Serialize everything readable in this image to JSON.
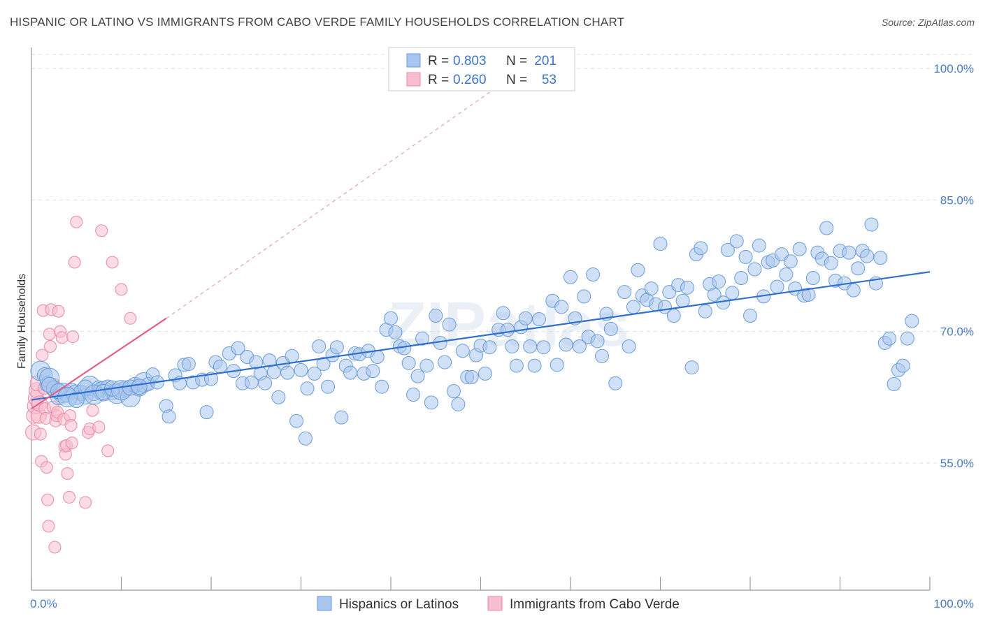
{
  "title": "HISPANIC OR LATINO VS IMMIGRANTS FROM CABO VERDE FAMILY HOUSEHOLDS CORRELATION CHART",
  "source": "Source: ZipAtlas.com",
  "watermark": "ZIPatlas",
  "colors": {
    "blue_fill": "#aac6ee",
    "blue_stroke": "#6a9bd8",
    "blue_line": "#2f6fd0",
    "pink_fill": "#f7bdd0",
    "pink_stroke": "#e88aa8",
    "pink_line": "#e0608c",
    "axis_text": "#4a7cc9",
    "grid": "#dddddd"
  },
  "legend_top": [
    {
      "r_label": "R =",
      "r_value": "0.803",
      "n_label": "N =",
      "n_value": "201"
    },
    {
      "r_label": "R =",
      "r_value": "0.260",
      "n_label": "N =",
      "n_value": "53"
    }
  ],
  "legend_bottom": [
    "Hispanics or Latinos",
    "Immigrants from Cabo Verde"
  ],
  "chart_data": {
    "type": "scatter",
    "xlabel": "",
    "ylabel": "Family Households",
    "xlim": [
      0,
      100
    ],
    "ylim": [
      40,
      103
    ],
    "x_tick_labels": [
      "0.0%",
      "100.0%"
    ],
    "y_ticks": [
      55,
      70,
      85,
      100
    ],
    "y_tick_labels": [
      "55.0%",
      "70.0%",
      "85.0%",
      "100.0%"
    ],
    "series": [
      {
        "name": "Hispanics or Latinos",
        "trend": {
          "x0": 0,
          "y0": 62.2,
          "x1": 100,
          "y1": 76.8
        },
        "points": [
          [
            1,
            65.5
          ],
          [
            1.5,
            65
          ],
          [
            1.8,
            64
          ],
          [
            2,
            64.7
          ],
          [
            2.5,
            63.5
          ],
          [
            3,
            62.5
          ],
          [
            3.5,
            63
          ],
          [
            4,
            62.8
          ],
          [
            4.5,
            63.2
          ],
          [
            5,
            62.8
          ],
          [
            5.5,
            63
          ],
          [
            6,
            62.6
          ],
          [
            6.5,
            63.8
          ],
          [
            7,
            63
          ],
          [
            7.5,
            63.5
          ],
          [
            8,
            63.2
          ],
          [
            8.5,
            63.6
          ],
          [
            9,
            63.1
          ],
          [
            9.5,
            62.9
          ],
          [
            10,
            63.3
          ],
          [
            10.5,
            63.5
          ],
          [
            11,
            62.5
          ],
          [
            11.5,
            63.9
          ],
          [
            12,
            63.5
          ],
          [
            12.5,
            64.2
          ],
          [
            13,
            64
          ],
          [
            13.5,
            65.1
          ],
          [
            14,
            64.2
          ],
          [
            15,
            61.5
          ],
          [
            15.3,
            60.3
          ],
          [
            16,
            65
          ],
          [
            16.5,
            64.1
          ],
          [
            17,
            66.2
          ],
          [
            17.5,
            66.3
          ],
          [
            18,
            64.2
          ],
          [
            19,
            64.5
          ],
          [
            19.5,
            60.8
          ],
          [
            20,
            64.6
          ],
          [
            20.5,
            66.5
          ],
          [
            21,
            66
          ],
          [
            22,
            67.5
          ],
          [
            22.5,
            65.5
          ],
          [
            23,
            68.1
          ],
          [
            23.5,
            64.1
          ],
          [
            24,
            67.1
          ],
          [
            24.5,
            64.2
          ],
          [
            25,
            66.5
          ],
          [
            25.5,
            65.2
          ],
          [
            26,
            64.1
          ],
          [
            26.5,
            66.7
          ],
          [
            27,
            65.4
          ],
          [
            27.5,
            62.5
          ],
          [
            28,
            66.4
          ],
          [
            28.5,
            65.3
          ],
          [
            29,
            67.2
          ],
          [
            29.5,
            59.8
          ],
          [
            30,
            65.6
          ],
          [
            30.5,
            57.8
          ],
          [
            30.7,
            63.5
          ],
          [
            31.5,
            65.2
          ],
          [
            32,
            68.3
          ],
          [
            32.5,
            66.3
          ],
          [
            33,
            63.7
          ],
          [
            33.5,
            67.3
          ],
          [
            34,
            68.2
          ],
          [
            34.5,
            60.2
          ],
          [
            35,
            66.1
          ],
          [
            35.5,
            65.3
          ],
          [
            36,
            67.5
          ],
          [
            36.5,
            67.4
          ],
          [
            37,
            65.2
          ],
          [
            37.5,
            67.8
          ],
          [
            38,
            65.5
          ],
          [
            38.5,
            67.1
          ],
          [
            39,
            63.7
          ],
          [
            39.5,
            70.2
          ],
          [
            40,
            71.5
          ],
          [
            40.5,
            69.9
          ],
          [
            41,
            68.3
          ],
          [
            41.5,
            68.1
          ],
          [
            42,
            66.4
          ],
          [
            42.5,
            62.8
          ],
          [
            43,
            64.9
          ],
          [
            43.5,
            69.2
          ],
          [
            44,
            66.1
          ],
          [
            44.5,
            61.9
          ],
          [
            45,
            71.8
          ],
          [
            45.5,
            68.7
          ],
          [
            46,
            66.5
          ],
          [
            46.5,
            70.8
          ],
          [
            47,
            63.2
          ],
          [
            47.5,
            61.7
          ],
          [
            48,
            67.8
          ],
          [
            48.5,
            64.8
          ],
          [
            49,
            64.8
          ],
          [
            49.5,
            67.3
          ],
          [
            50,
            68.4
          ],
          [
            50.5,
            65.2
          ],
          [
            51,
            68.2
          ],
          [
            52,
            70.2
          ],
          [
            52.5,
            72.1
          ],
          [
            53,
            70.2
          ],
          [
            53.5,
            68.3
          ],
          [
            54,
            66.1
          ],
          [
            54.5,
            70.5
          ],
          [
            55,
            71.5
          ],
          [
            55.5,
            68.3
          ],
          [
            56,
            66.1
          ],
          [
            56.5,
            71.4
          ],
          [
            57,
            68.2
          ],
          [
            58,
            73.5
          ],
          [
            58.5,
            66.2
          ],
          [
            59,
            72.8
          ],
          [
            59.5,
            68.5
          ],
          [
            60,
            76.2
          ],
          [
            60.5,
            71.5
          ],
          [
            61,
            68.3
          ],
          [
            61.5,
            74
          ],
          [
            62,
            69.4
          ],
          [
            62.5,
            76.5
          ],
          [
            63,
            68.9
          ],
          [
            63.5,
            67.2
          ],
          [
            64,
            72
          ],
          [
            64.5,
            70.3
          ],
          [
            65,
            64.1
          ],
          [
            66,
            74.5
          ],
          [
            66.5,
            68.3
          ],
          [
            67,
            72.8
          ],
          [
            67.5,
            77
          ],
          [
            68,
            74.1
          ],
          [
            68.5,
            73.6
          ],
          [
            69,
            74.9
          ],
          [
            69.5,
            73.1
          ],
          [
            70,
            80
          ],
          [
            70.5,
            72.8
          ],
          [
            71,
            74.5
          ],
          [
            71.5,
            71.8
          ],
          [
            72,
            75.3
          ],
          [
            72.5,
            73.5
          ],
          [
            73,
            75
          ],
          [
            73.5,
            65.9
          ],
          [
            74,
            78.8
          ],
          [
            74.5,
            79.5
          ],
          [
            75,
            72.3
          ],
          [
            75.5,
            75.4
          ],
          [
            76,
            74.2
          ],
          [
            76.5,
            75.7
          ],
          [
            77,
            73.3
          ],
          [
            77.5,
            79.3
          ],
          [
            78,
            74.4
          ],
          [
            78.5,
            80.3
          ],
          [
            79,
            76.1
          ],
          [
            79.5,
            78.5
          ],
          [
            80,
            71.8
          ],
          [
            80.5,
            77.1
          ],
          [
            81,
            79.8
          ],
          [
            81.5,
            74
          ],
          [
            82,
            77.9
          ],
          [
            82.5,
            78.1
          ],
          [
            83,
            75.1
          ],
          [
            83.5,
            78.8
          ],
          [
            84,
            76.5
          ],
          [
            84.5,
            78
          ],
          [
            85,
            74.9
          ],
          [
            85.5,
            79.4
          ],
          [
            86,
            74.1
          ],
          [
            86.5,
            74.2
          ],
          [
            87,
            76.1
          ],
          [
            87.5,
            79
          ],
          [
            88,
            78.3
          ],
          [
            88.5,
            81.8
          ],
          [
            89,
            77.8
          ],
          [
            89.5,
            75.8
          ],
          [
            90,
            79.2
          ],
          [
            90.5,
            75.5
          ],
          [
            91,
            79
          ],
          [
            91.5,
            74.7
          ],
          [
            92,
            77.2
          ],
          [
            92.5,
            79.2
          ],
          [
            93,
            78.6
          ],
          [
            93.5,
            82.2
          ],
          [
            94,
            75.5
          ],
          [
            94.5,
            78.4
          ],
          [
            95,
            68.7
          ],
          [
            95.5,
            69.2
          ],
          [
            96,
            64
          ],
          [
            96.5,
            65.6
          ],
          [
            97,
            66.1
          ],
          [
            97.5,
            69.2
          ],
          [
            98,
            71.2
          ],
          [
            2,
            63.9
          ],
          [
            3,
            63.2
          ],
          [
            4,
            62.5
          ],
          [
            5,
            62.2
          ],
          [
            6,
            63.6
          ],
          [
            7,
            62.8
          ],
          [
            8,
            63.1
          ],
          [
            9,
            63.5
          ],
          [
            10,
            63.3
          ],
          [
            11,
            63.6
          ],
          [
            12,
            63.7
          ]
        ]
      },
      {
        "name": "Immigrants from Cabo Verde",
        "trend": {
          "x0": 0,
          "y0": 61.2,
          "x1": 15,
          "y1": 71.5
        },
        "trend_dashed_to": {
          "x1": 52,
          "y1": 98
        },
        "points": [
          [
            0.2,
            58.5
          ],
          [
            0.3,
            60.4
          ],
          [
            0.4,
            61.5
          ],
          [
            0.5,
            62.4
          ],
          [
            0.6,
            63.3
          ],
          [
            0.7,
            64.1
          ],
          [
            0.8,
            60.4
          ],
          [
            0.9,
            61.8
          ],
          [
            1,
            58.3
          ],
          [
            1.1,
            55.2
          ],
          [
            1.2,
            67.3
          ],
          [
            1.3,
            72.4
          ],
          [
            1.4,
            63.5
          ],
          [
            1.5,
            61.2
          ],
          [
            1.6,
            60.1
          ],
          [
            1.7,
            54.5
          ],
          [
            1.8,
            50.8
          ],
          [
            1.9,
            47.8
          ],
          [
            2,
            69.7
          ],
          [
            2.1,
            68.3
          ],
          [
            2.2,
            72.5
          ],
          [
            2.3,
            63.3
          ],
          [
            2.4,
            61.4
          ],
          [
            2.5,
            64
          ],
          [
            2.6,
            45.4
          ],
          [
            2.7,
            59.8
          ],
          [
            2.8,
            60.4
          ],
          [
            2.9,
            60.8
          ],
          [
            3,
            72.3
          ],
          [
            3.2,
            70
          ],
          [
            3.4,
            69.3
          ],
          [
            3.6,
            60
          ],
          [
            3.7,
            56.9
          ],
          [
            3.8,
            56
          ],
          [
            3.9,
            57
          ],
          [
            4,
            53.8
          ],
          [
            4.2,
            51.1
          ],
          [
            4.3,
            60.4
          ],
          [
            4.4,
            59.3
          ],
          [
            4.5,
            57.3
          ],
          [
            4.6,
            69.4
          ],
          [
            4.8,
            77.9
          ],
          [
            5,
            82.5
          ],
          [
            6,
            50.5
          ],
          [
            6.3,
            58.5
          ],
          [
            6.5,
            58.9
          ],
          [
            6.8,
            61
          ],
          [
            7.5,
            59.1
          ],
          [
            7.8,
            81.5
          ],
          [
            8.5,
            56.4
          ],
          [
            9,
            77.9
          ],
          [
            10,
            74.8
          ],
          [
            11,
            71.5
          ]
        ]
      }
    ]
  }
}
